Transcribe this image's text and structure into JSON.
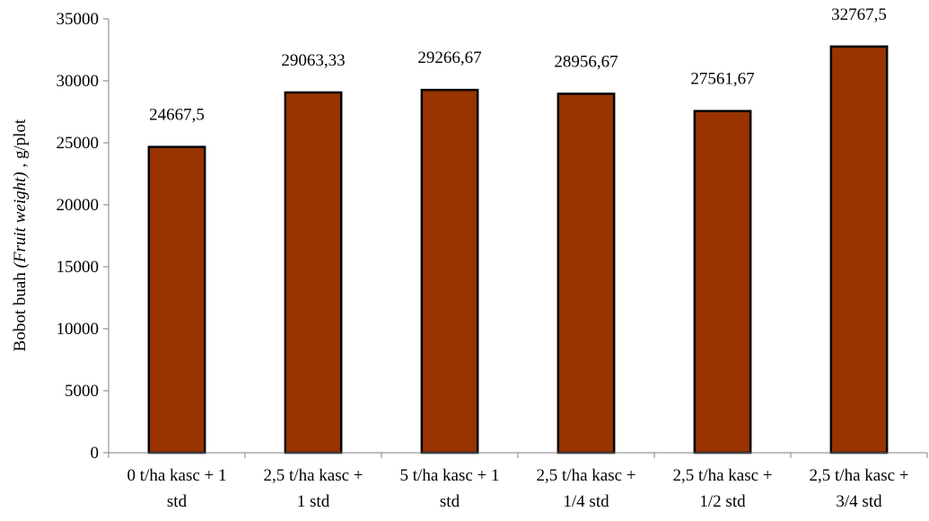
{
  "chart_data": {
    "type": "bar",
    "categories": [
      [
        "0 t/ha kasc + 1",
        "std"
      ],
      [
        "2,5 t/ha kasc +",
        "1 std"
      ],
      [
        "5 t/ha kasc + 1",
        "std"
      ],
      [
        "2,5 t/ha kasc +",
        "1/4 std"
      ],
      [
        "2,5 t/ha kasc +",
        "1/2 std"
      ],
      [
        "2,5 t/ha kasc +",
        "3/4 std"
      ]
    ],
    "values": [
      24667.5,
      29063.33,
      29266.67,
      28956.67,
      27561.67,
      32767.5
    ],
    "data_labels": [
      "24667,5",
      "29063,33",
      "29266,67",
      "28956,67",
      "27561,67",
      "32767,5"
    ],
    "ylabel": {
      "prefix": "Bobot buah ",
      "italic": "(Fruit weight)",
      "suffix": ", g/plot"
    },
    "ylim": [
      0,
      35000
    ],
    "yticks": [
      0,
      5000,
      10000,
      15000,
      20000,
      25000,
      30000,
      35000
    ],
    "grid": false,
    "legend": "none",
    "bar_color": "#993300",
    "bar_stroke": "#000000",
    "axis_color": "#808080"
  }
}
